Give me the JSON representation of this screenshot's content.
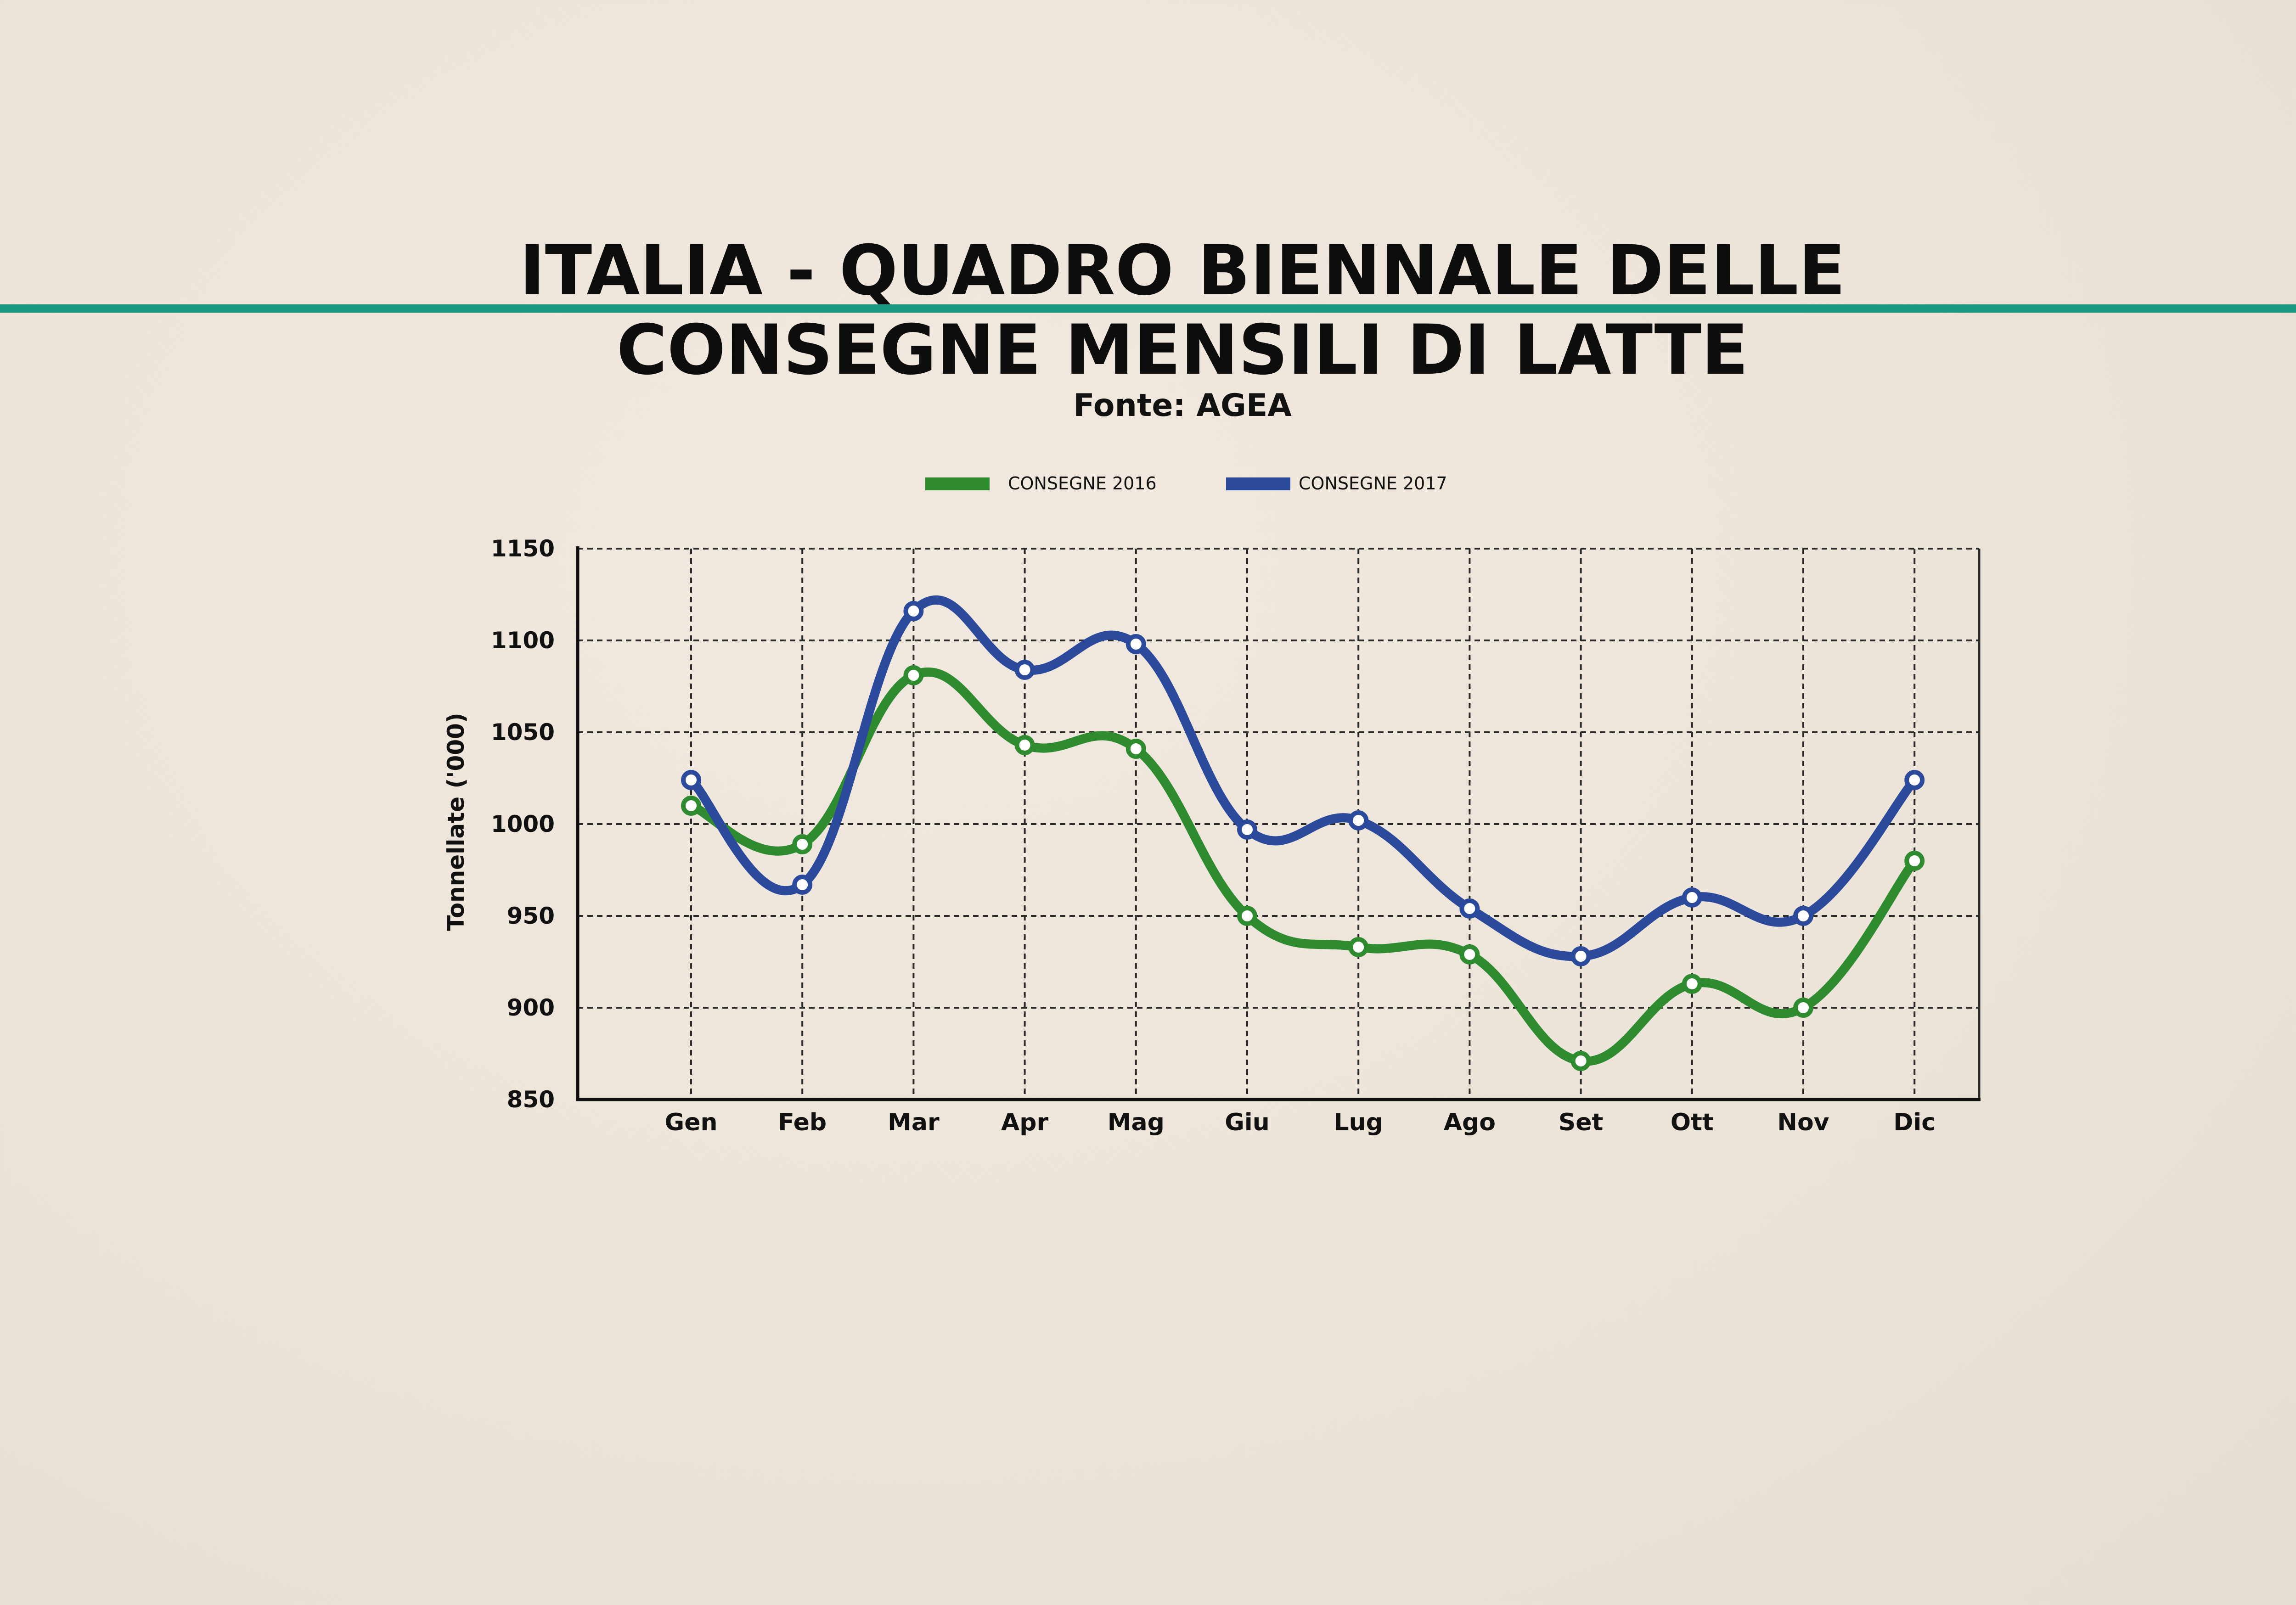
{
  "header": {
    "title_line1": "ITALIA - QUADRO BIENNALE DELLE",
    "title_line2": "CONSEGNE MENSILI DI LATTE",
    "subtitle": "Fonte: AGEA"
  },
  "colors": {
    "rule": "#1a9a83",
    "series_2016": "#2e8b2f",
    "series_2017": "#2c4a9c",
    "grid": "#2a2a2a"
  },
  "chart_data": {
    "type": "line",
    "title": "ITALIA - QUADRO BIENNALE DELLE CONSEGNE MENSILI DI LATTE",
    "subtitle": "Fonte: AGEA",
    "xlabel": "",
    "ylabel": "Tonnellate ('000)",
    "categories": [
      "Gen",
      "Feb",
      "Mar",
      "Apr",
      "Mag",
      "Giu",
      "Lug",
      "Ago",
      "Set",
      "Ott",
      "Nov",
      "Dic"
    ],
    "ylim": [
      850,
      1150
    ],
    "yticks": [
      850,
      900,
      950,
      1000,
      1050,
      1100,
      1150
    ],
    "grid": true,
    "smooth": true,
    "legend": "top",
    "series": [
      {
        "name": "CONSEGNE 2016",
        "color": "#2e8b2f",
        "values": [
          1010,
          989,
          1081,
          1043,
          1041,
          950,
          933,
          929,
          871,
          913,
          900,
          980
        ]
      },
      {
        "name": "CONSEGNE 2017",
        "color": "#2c4a9c",
        "values": [
          1024,
          967,
          1116,
          1084,
          1098,
          997,
          1002,
          954,
          928,
          960,
          950,
          1024
        ]
      }
    ]
  }
}
